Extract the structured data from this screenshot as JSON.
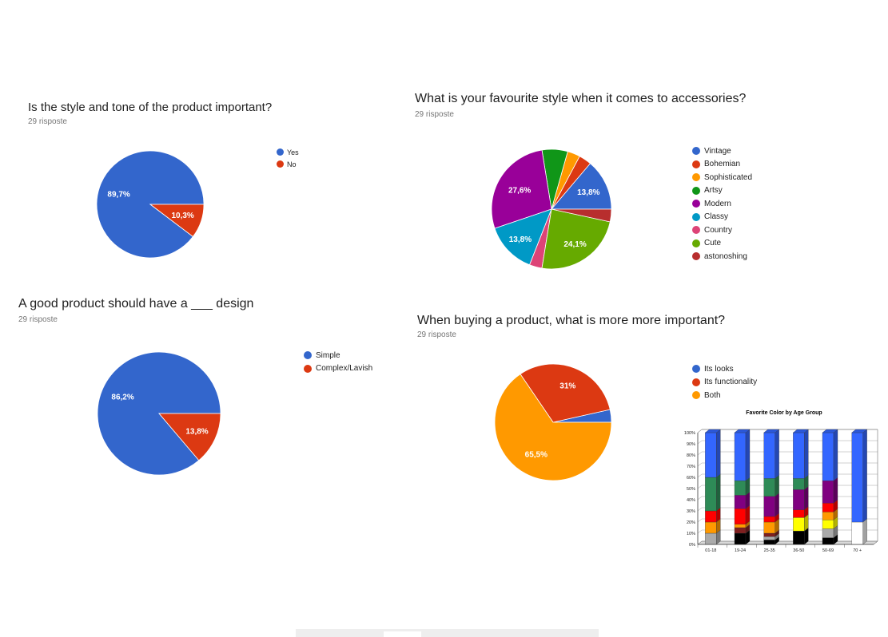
{
  "colors": {
    "blue": "#3366cc",
    "red": "#dc3912",
    "orange": "#ff9900",
    "green": "#109618",
    "purple": "#990099",
    "cyan": "#0099c6",
    "pink": "#dd4477",
    "lime": "#66aa00",
    "brick": "#b82e2e"
  },
  "chart_data": [
    {
      "type": "pie",
      "title": "Is the style and tone of the product important?",
      "subtitle": "29 risposte",
      "slices": [
        {
          "name": "Yes",
          "value": 89.7,
          "color": "#3366cc",
          "label": "89,7%"
        },
        {
          "name": "No",
          "value": 10.3,
          "color": "#dc3912",
          "label": "10,3%"
        }
      ],
      "legend_position": "right"
    },
    {
      "type": "pie",
      "title": "What is your favourite style when it comes to accessories?",
      "subtitle": "29 risposte",
      "slices": [
        {
          "name": "Vintage",
          "value": 13.8,
          "color": "#3366cc",
          "label": "13,8%"
        },
        {
          "name": "Bohemian",
          "value": 3.4,
          "color": "#dc3912",
          "label": ""
        },
        {
          "name": "Sophisticated",
          "value": 3.4,
          "color": "#ff9900",
          "label": ""
        },
        {
          "name": "Artsy",
          "value": 6.9,
          "color": "#109618",
          "label": ""
        },
        {
          "name": "Modern",
          "value": 27.6,
          "color": "#990099",
          "label": "27,6%"
        },
        {
          "name": "Classy",
          "value": 13.8,
          "color": "#0099c6",
          "label": "13,8%"
        },
        {
          "name": "Country",
          "value": 3.4,
          "color": "#dd4477",
          "label": ""
        },
        {
          "name": "Cute",
          "value": 24.1,
          "color": "#66aa00",
          "label": "24,1%"
        },
        {
          "name": "astonoshing",
          "value": 3.4,
          "color": "#b82e2e",
          "label": ""
        }
      ],
      "legend_position": "right"
    },
    {
      "type": "pie",
      "title": "A good product should have a ___ design",
      "subtitle": "29 risposte",
      "slices": [
        {
          "name": "Simple",
          "value": 86.2,
          "color": "#3366cc",
          "label": "86,2%"
        },
        {
          "name": "Complex/Lavish",
          "value": 13.8,
          "color": "#dc3912",
          "label": "13,8%"
        }
      ],
      "legend_position": "right"
    },
    {
      "type": "pie",
      "title": "When buying a product, what is more more important?",
      "subtitle": "29 risposte",
      "slices": [
        {
          "name": "Its looks",
          "value": 3.5,
          "color": "#3366cc",
          "label": ""
        },
        {
          "name": "Its functionality",
          "value": 31,
          "color": "#dc3912",
          "label": "31%"
        },
        {
          "name": "Both",
          "value": 65.5,
          "color": "#ff9900",
          "label": "65,5%"
        }
      ],
      "legend_position": "right"
    },
    {
      "type": "bar",
      "stacked": true,
      "title": "Favorite Color by Age Group",
      "categories": [
        "01-18",
        "19-24",
        "25-35",
        "36-50",
        "50-69",
        "70 +"
      ],
      "y_ticks": [
        "0%",
        "10%",
        "20%",
        "30%",
        "40%",
        "50%",
        "60%",
        "70%",
        "80%",
        "90%",
        "100%"
      ],
      "ylim": [
        0,
        100
      ],
      "series": [
        {
          "color": "#ffffff",
          "values": [
            0,
            0,
            0,
            0,
            0,
            20
          ]
        },
        {
          "color": "#000000",
          "values": [
            0,
            10,
            4,
            12,
            6,
            0
          ]
        },
        {
          "color": "#aaaaaa",
          "values": [
            10,
            0,
            3,
            0,
            8,
            0
          ]
        },
        {
          "color": "#7f1f1f",
          "values": [
            0,
            5,
            3,
            0,
            0,
            0
          ]
        },
        {
          "color": "#ffff00",
          "values": [
            0,
            0,
            0,
            12,
            8,
            0
          ]
        },
        {
          "color": "#ff9900",
          "values": [
            10,
            3,
            10,
            0,
            7,
            0
          ]
        },
        {
          "color": "#ff0000",
          "values": [
            10,
            14,
            5,
            7,
            8,
            0
          ]
        },
        {
          "color": "#800080",
          "values": [
            0,
            12,
            18,
            18,
            20,
            0
          ]
        },
        {
          "color": "#2e8b57",
          "values": [
            30,
            13,
            16,
            10,
            0,
            0
          ]
        },
        {
          "color": "#3366ff",
          "values": [
            40,
            43,
            41,
            41,
            43,
            80
          ]
        }
      ]
    }
  ],
  "pie1": {
    "title": "Is the style and tone of the product important?",
    "sub": "29 risposte",
    "legend": [
      {
        "label": "Yes"
      },
      {
        "label": "No"
      }
    ]
  },
  "pie2": {
    "title": "What is your favourite style when it comes to accessories?",
    "sub": "29 risposte",
    "legend": [
      {
        "label": "Vintage"
      },
      {
        "label": "Bohemian"
      },
      {
        "label": "Sophisticated"
      },
      {
        "label": "Artsy"
      },
      {
        "label": "Modern"
      },
      {
        "label": "Classy"
      },
      {
        "label": "Country"
      },
      {
        "label": "Cute"
      },
      {
        "label": "astonoshing"
      }
    ]
  },
  "pie3": {
    "title": "A good product should have a ___ design",
    "sub": "29 risposte",
    "legend": [
      {
        "label": "Simple"
      },
      {
        "label": "Complex/Lavish"
      }
    ]
  },
  "pie4": {
    "title": "When buying a product, what is more more important?",
    "sub": "29 risposte",
    "legend": [
      {
        "label": "Its looks"
      },
      {
        "label": "Its functionality"
      },
      {
        "label": "Both"
      }
    ]
  }
}
